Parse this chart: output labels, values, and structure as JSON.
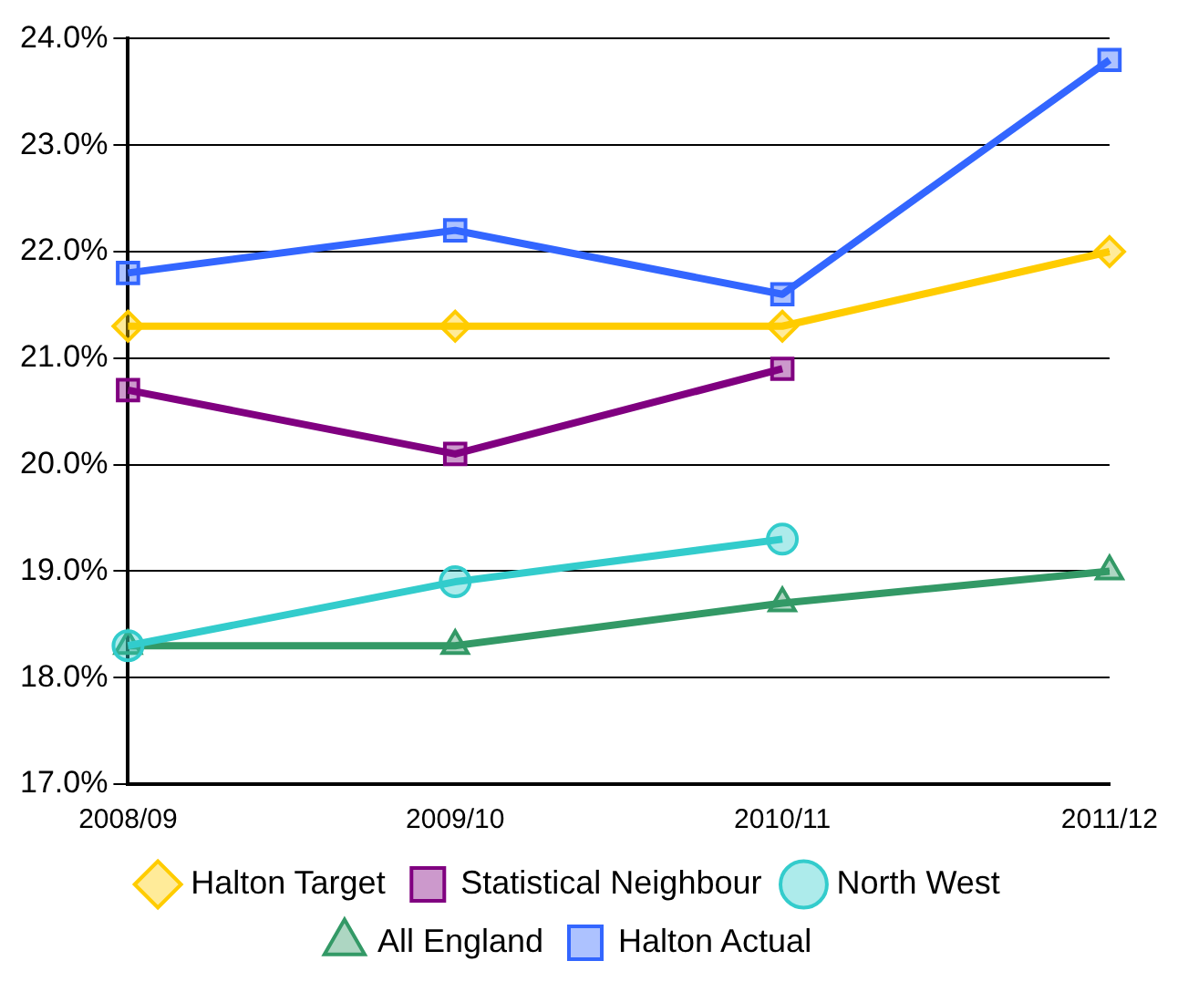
{
  "chart_data": {
    "type": "line",
    "categories": [
      "2008/09",
      "2009/10",
      "2010/11",
      "2011/12"
    ],
    "series": [
      {
        "name": "Halton Actual",
        "color": "#3366ff",
        "marker": "square",
        "values": [
          21.8,
          22.2,
          21.6,
          23.8
        ]
      },
      {
        "name": "All England",
        "color": "#339966",
        "marker": "triangle",
        "values": [
          18.3,
          18.3,
          18.7,
          19.0
        ]
      },
      {
        "name": "North West",
        "color": "#33cccc",
        "marker": "circle",
        "values": [
          18.3,
          18.9,
          19.3,
          null
        ]
      },
      {
        "name": "Statistical Neighbour",
        "color": "#800080",
        "marker": "square",
        "values": [
          20.7,
          20.1,
          20.9,
          null
        ]
      },
      {
        "name": "Halton Target",
        "color": "#ffcc00",
        "marker": "diamond",
        "values": [
          21.3,
          21.3,
          21.3,
          22.0
        ]
      }
    ],
    "ylim": [
      17,
      24
    ],
    "yticks": [
      {
        "value": 17,
        "label": "17.0%"
      },
      {
        "value": 18,
        "label": "18.0%"
      },
      {
        "value": 19,
        "label": "19.0%"
      },
      {
        "value": 20,
        "label": "20.0%"
      },
      {
        "value": 21,
        "label": "21.0%"
      },
      {
        "value": 22,
        "label": "22.0%"
      },
      {
        "value": 23,
        "label": "23.0%"
      },
      {
        "value": 24,
        "label": "24.0%"
      }
    ],
    "grid": "y",
    "legend": "bottom"
  }
}
